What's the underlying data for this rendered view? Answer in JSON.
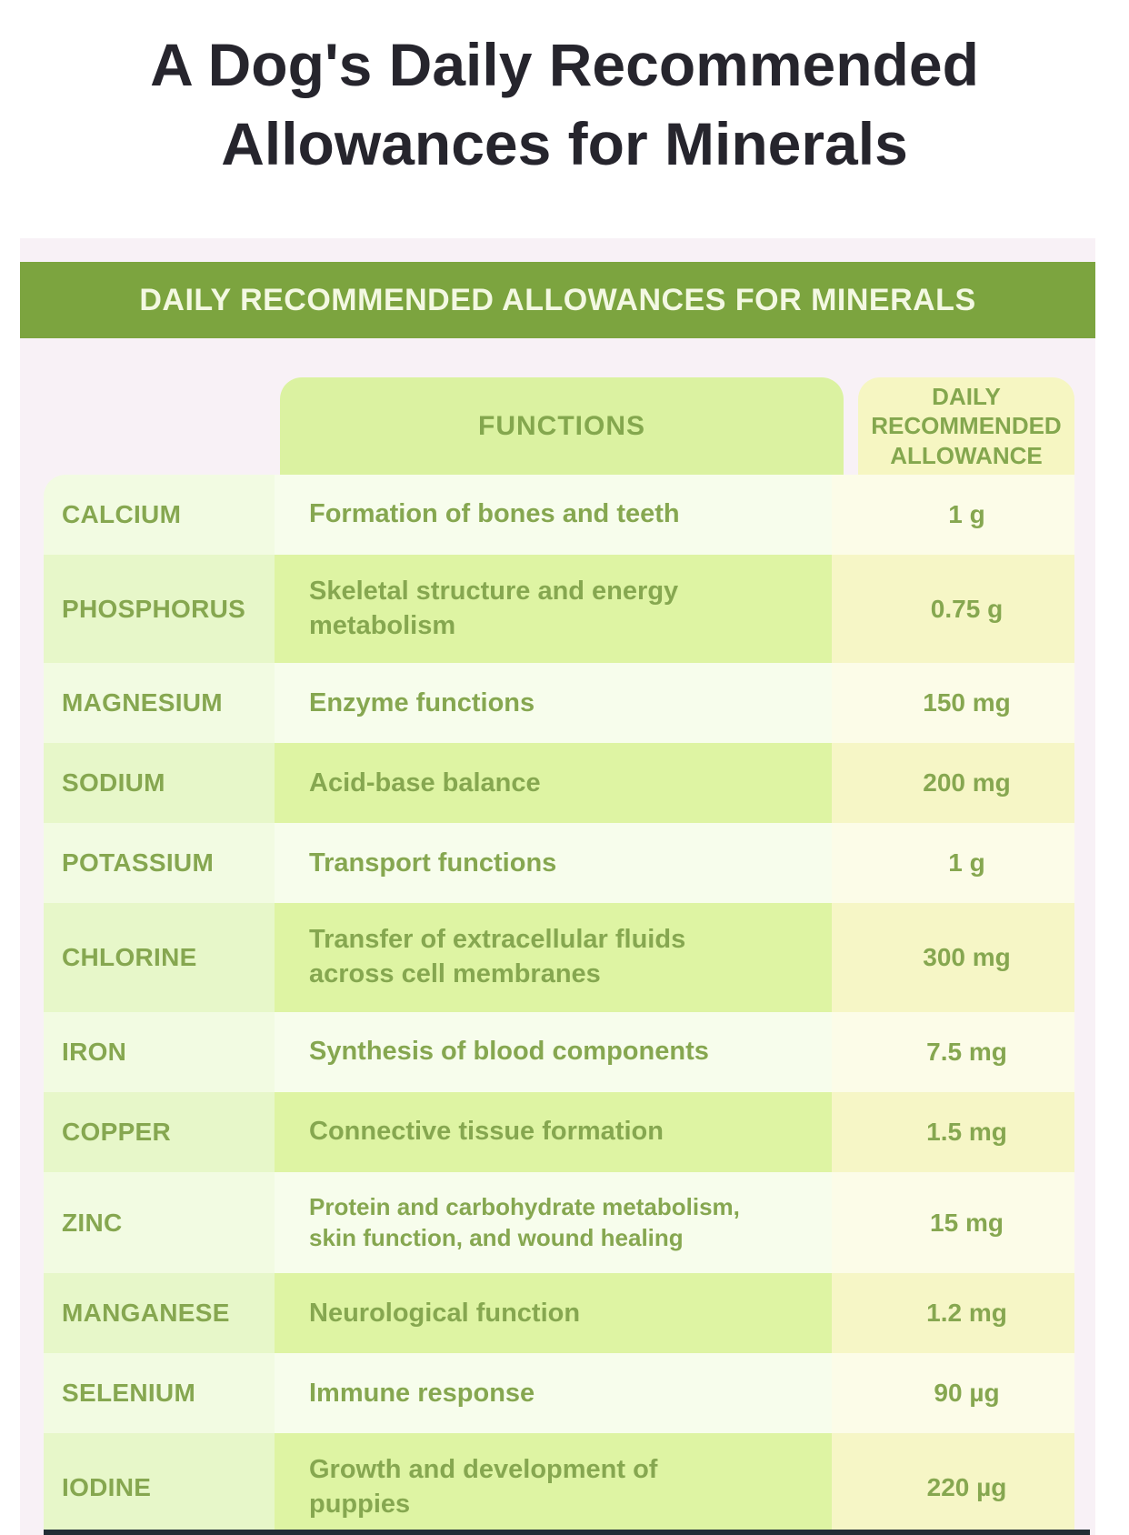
{
  "title": "A Dog's Daily Recommended\nAllowances for Minerals",
  "colors": {
    "banner_green": "#7ca43f",
    "banner_text": "#f3f8e2",
    "text_green": "#86a750",
    "panel_pink": "#f8f1f6",
    "header_functions_bg": "#dbf2a1",
    "header_allowance_bg": "#f6f6c2",
    "row_even_label_bg": "#e7f7c9",
    "row_even_functions_bg": "#def4a3",
    "row_even_allowance_bg": "#f6f6c6",
    "row_odd_label_bg": "#f2fbe2",
    "row_odd_functions_bg": "#f7fdec",
    "row_odd_allowance_bg": "#fcfce8",
    "title_text": "#26252d",
    "bottom_edge_dark": "#222e35"
  },
  "chart_data": {
    "type": "table",
    "title": "A Dog's Daily Recommended Allowances for Minerals",
    "banner": "DAILY RECOMMENDED ALLOWANCES FOR MINERALS",
    "columns": [
      "",
      "FUNCTIONS",
      "DAILY\nRECOMMENDED\nALLOWANCE"
    ],
    "rows": [
      {
        "mineral": "CALCIUM",
        "function": "Formation of bones and teeth",
        "allowance": "1 g"
      },
      {
        "mineral": "PHOSPHORUS",
        "function": "Skeletal structure and energy\nmetabolism",
        "allowance": "0.75 g"
      },
      {
        "mineral": "MAGNESIUM",
        "function": "Enzyme functions",
        "allowance": "150 mg"
      },
      {
        "mineral": "SODIUM",
        "function": "Acid-base balance",
        "allowance": "200 mg"
      },
      {
        "mineral": "POTASSIUM",
        "function": "Transport functions",
        "allowance": "1 g"
      },
      {
        "mineral": "CHLORINE",
        "function": "Transfer of extracellular fluids\nacross cell membranes",
        "allowance": "300 mg"
      },
      {
        "mineral": "IRON",
        "function": "Synthesis of blood components",
        "allowance": "7.5 mg"
      },
      {
        "mineral": "COPPER",
        "function": "Connective tissue formation",
        "allowance": "1.5 mg"
      },
      {
        "mineral": "ZINC",
        "function": "Protein and carbohydrate metabolism,\nskin function, and wound healing",
        "allowance": "15 mg"
      },
      {
        "mineral": "MANGANESE",
        "function": "Neurological function",
        "allowance": "1.2 mg"
      },
      {
        "mineral": "SELENIUM",
        "function": "Immune response",
        "allowance": "90 µg"
      },
      {
        "mineral": "IODINE",
        "function": "Growth and development of\npuppies",
        "allowance": "220 µg"
      }
    ]
  }
}
